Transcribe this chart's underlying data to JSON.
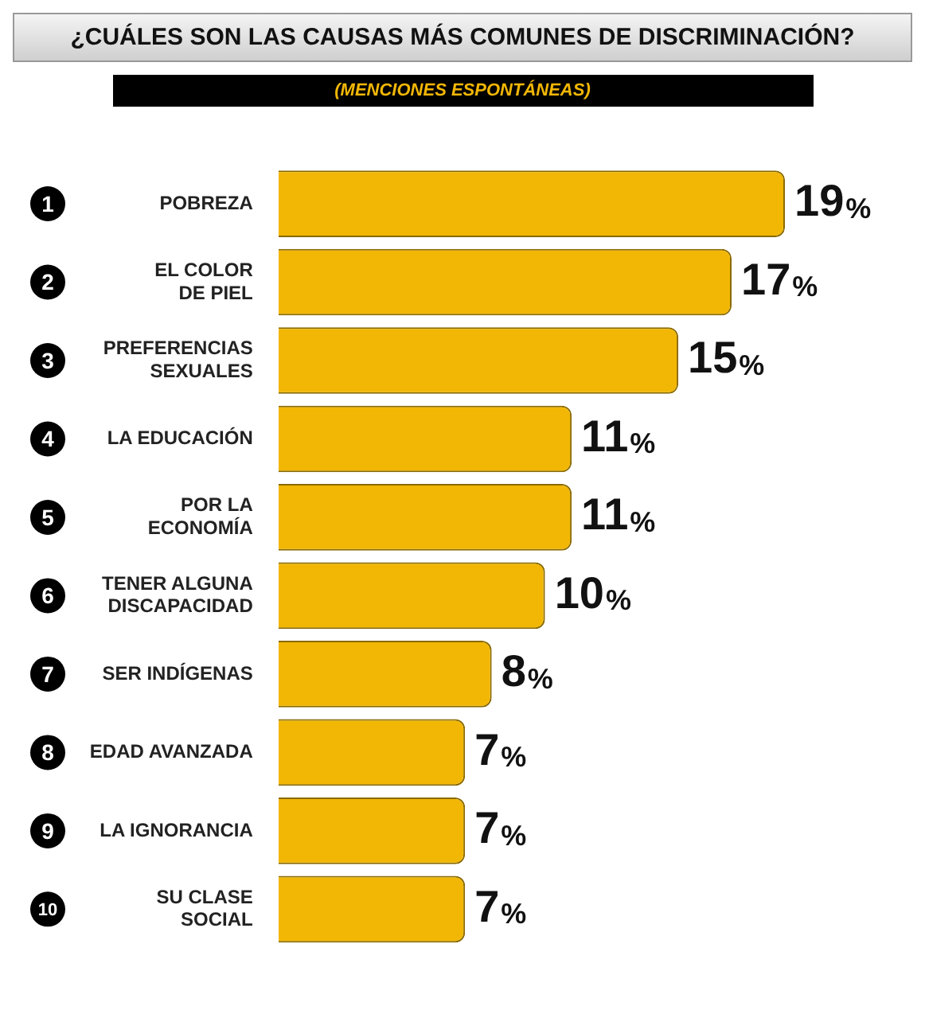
{
  "chart_data": {
    "type": "bar",
    "orientation": "horizontal",
    "title": "¿CUÁLES SON LAS CAUSAS MÁS COMUNES DE DISCRIMINACIÓN?",
    "subtitle": "(MENCIONES ESPONTÁNEAS)",
    "categories": [
      "POBREZA",
      "EL COLOR DE PIEL",
      "PREFERENCIAS SEXUALES",
      "LA EDUCACIÓN",
      "POR LA ECONOMÍA",
      "TENER ALGUNA DISCAPACIDAD",
      "SER INDÍGENAS",
      "EDAD AVANZADA",
      "LA IGNORANCIA",
      "SU CLASE SOCIAL"
    ],
    "values": [
      19,
      17,
      15,
      11,
      11,
      10,
      8,
      7,
      7,
      7
    ],
    "value_labels": [
      "19%",
      "17%",
      "15%",
      "11%",
      "11%",
      "10%",
      "8%",
      "7%",
      "7%",
      "7%"
    ],
    "color": "#f2b705",
    "annotations": [
      "1",
      "2",
      "3",
      "4",
      "5",
      "6",
      "7",
      "8",
      "9",
      "10"
    ],
    "grid": false,
    "legend": false,
    "tick_labels": "y"
  }
}
